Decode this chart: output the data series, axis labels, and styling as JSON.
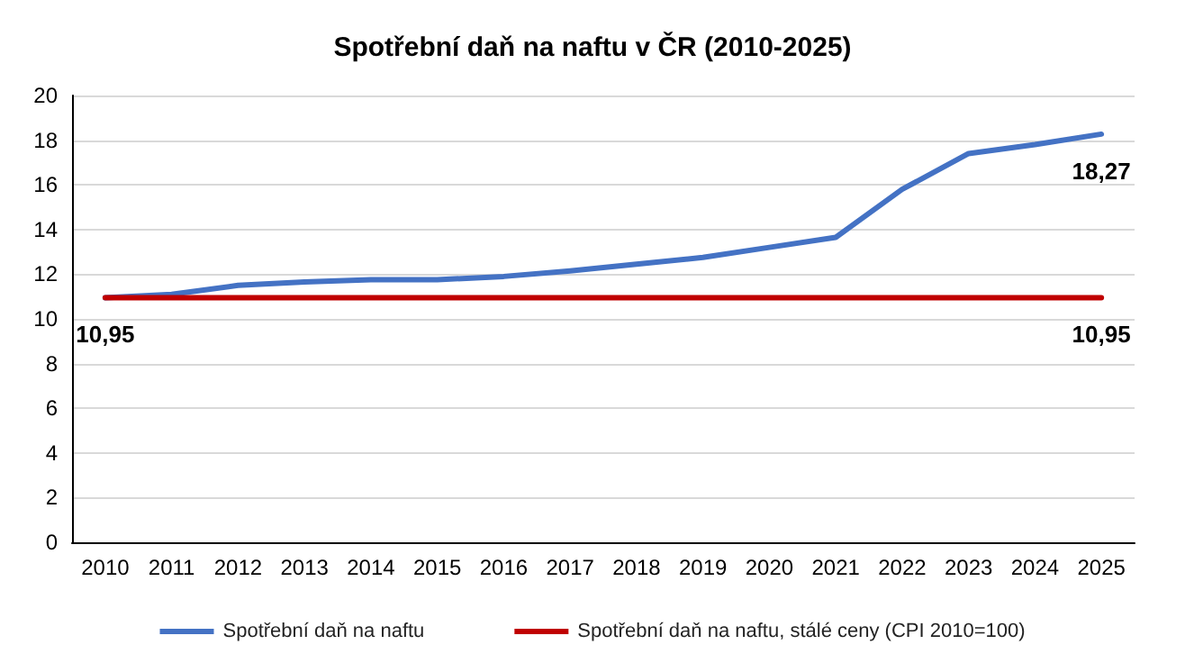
{
  "chart_data": {
    "type": "line",
    "title": "Spotřební daň na naftu v ČR (2010-2025)",
    "categories": [
      "2010",
      "2011",
      "2012",
      "2013",
      "2014",
      "2015",
      "2016",
      "2017",
      "2018",
      "2019",
      "2020",
      "2021",
      "2022",
      "2023",
      "2024",
      "2025"
    ],
    "series": [
      {
        "name": "Spotřební daň na naftu",
        "color": "#4472c4",
        "values": [
          10.95,
          11.1,
          11.5,
          11.65,
          11.75,
          11.75,
          11.9,
          12.15,
          12.45,
          12.75,
          13.2,
          13.65,
          15.8,
          17.4,
          17.8,
          18.27
        ],
        "value_labels": [
          null,
          null,
          null,
          null,
          null,
          null,
          null,
          null,
          null,
          null,
          null,
          null,
          null,
          null,
          null,
          "18,27"
        ]
      },
      {
        "name": "Spotřební daň na naftu, stálé ceny (CPI 2010=100)",
        "color": "#c00000",
        "values": [
          10.95,
          10.95,
          10.95,
          10.95,
          10.95,
          10.95,
          10.95,
          10.95,
          10.95,
          10.95,
          10.95,
          10.95,
          10.95,
          10.95,
          10.95,
          10.95
        ],
        "value_labels": [
          "10,95",
          null,
          null,
          null,
          null,
          null,
          null,
          null,
          null,
          null,
          null,
          null,
          null,
          null,
          null,
          "10,95"
        ]
      }
    ],
    "ylim": [
      0,
      20
    ],
    "yticks": [
      0,
      2,
      4,
      6,
      8,
      10,
      12,
      14,
      16,
      18,
      20
    ],
    "grid": "y",
    "legend": "bottom",
    "marker": "none",
    "line_style": "solid"
  }
}
